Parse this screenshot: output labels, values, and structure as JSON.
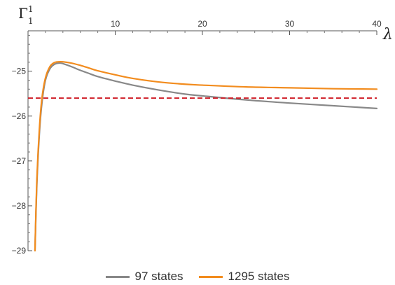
{
  "chart_data": {
    "type": "line",
    "xlabel": "λ",
    "ylabel": "Γ",
    "ylabel_sup": "1",
    "ylabel_sub": "1",
    "xlim": [
      0,
      40
    ],
    "ylim": [
      -29,
      -24.1
    ],
    "x_ticks": [
      10,
      20,
      30,
      40
    ],
    "y_ticks": [
      -25,
      -26,
      -27,
      -28,
      -29
    ],
    "x_tick_labels": [
      "10",
      "20",
      "30",
      "40"
    ],
    "y_tick_labels": [
      "−25",
      "−26",
      "−27",
      "−28",
      "−29"
    ],
    "grid": false,
    "legend_position": "bottom",
    "series": [
      {
        "name": "97 states",
        "color": "#888888",
        "x": [
          0.8,
          1.0,
          1.3,
          1.6,
          2.0,
          2.5,
          3.0,
          3.5,
          4.0,
          5,
          6,
          7,
          8,
          10,
          12,
          15,
          18,
          20,
          25,
          30,
          35,
          40
        ],
        "y": [
          -29.0,
          -27.6,
          -26.4,
          -25.7,
          -25.2,
          -24.95,
          -24.85,
          -24.82,
          -24.83,
          -24.9,
          -24.98,
          -25.05,
          -25.12,
          -25.22,
          -25.31,
          -25.42,
          -25.51,
          -25.55,
          -25.64,
          -25.71,
          -25.77,
          -25.83
        ]
      },
      {
        "name": "1295 states",
        "color": "#F28C1E",
        "x": [
          0.8,
          1.0,
          1.3,
          1.6,
          2.0,
          2.5,
          3.0,
          3.5,
          4.0,
          5,
          6,
          7,
          8,
          10,
          12,
          15,
          18,
          20,
          25,
          30,
          35,
          40
        ],
        "y": [
          -29.0,
          -27.5,
          -26.3,
          -25.6,
          -25.15,
          -24.9,
          -24.81,
          -24.79,
          -24.79,
          -24.82,
          -24.87,
          -24.93,
          -24.99,
          -25.08,
          -25.16,
          -25.24,
          -25.29,
          -25.31,
          -25.35,
          -25.37,
          -25.39,
          -25.4
        ]
      },
      {
        "name": "",
        "color": "#D0202A",
        "dashed": true,
        "x": [
          0,
          40
        ],
        "y": [
          -25.6,
          -25.6
        ]
      }
    ]
  }
}
